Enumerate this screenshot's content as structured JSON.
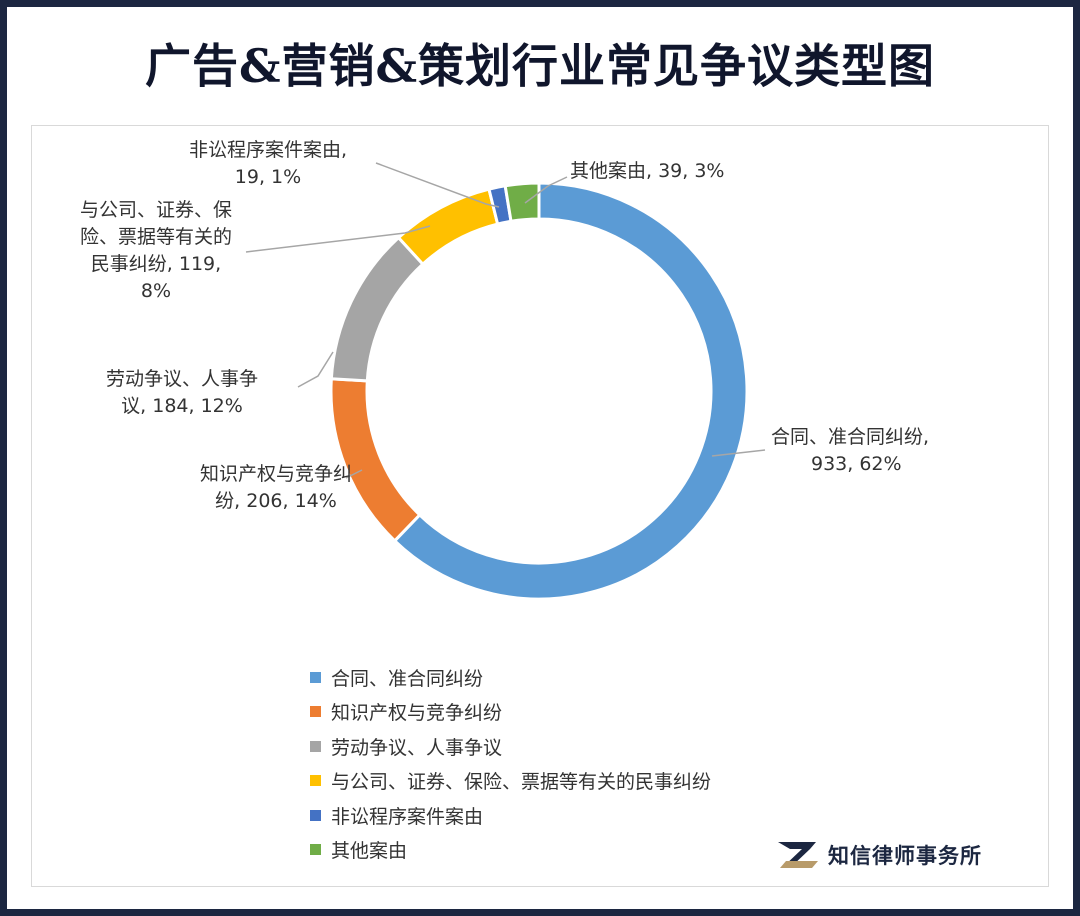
{
  "header": {
    "title": "广告&营销&策划行业常见争议类型图"
  },
  "chart_data": {
    "type": "pie",
    "variant": "donut",
    "title": "",
    "slices": [
      {
        "name": "合同、准合同纠纷",
        "value": 933,
        "percent": "62%",
        "color": "#5b9bd5",
        "label_lines": [
          "合同、准合同纠纷,",
          "933, 62%"
        ]
      },
      {
        "name": "知识产权与竞争纠纷",
        "value": 206,
        "percent": "14%",
        "color": "#ed7d31",
        "label_lines": [
          "知识产权与竞争纠",
          "纷, 206, 14%"
        ]
      },
      {
        "name": "劳动争议、人事争议",
        "value": 184,
        "percent": "12%",
        "color": "#a5a5a5",
        "label_lines": [
          "劳动争议、人事争",
          "议, 184, 12%"
        ]
      },
      {
        "name": "与公司、证券、保险、票据等有关的民事纠纷",
        "value": 119,
        "percent": "8%",
        "color": "#ffc000",
        "label_lines": [
          "与公司、证券、保",
          "险、票据等有关的",
          "民事纠纷, 119,",
          "8%"
        ]
      },
      {
        "name": "非讼程序案件案由",
        "value": 19,
        "percent": "1%",
        "color": "#4472c4",
        "label_lines": [
          "非讼程序案件案由,",
          "19, 1%"
        ]
      },
      {
        "name": "其他案由",
        "value": 39,
        "percent": "3%",
        "color": "#70ad47",
        "label_lines": [
          "其他案由, 39, 3%"
        ]
      }
    ],
    "legend_position": "bottom"
  },
  "branding": {
    "logo_text": "知信律师事务所"
  }
}
